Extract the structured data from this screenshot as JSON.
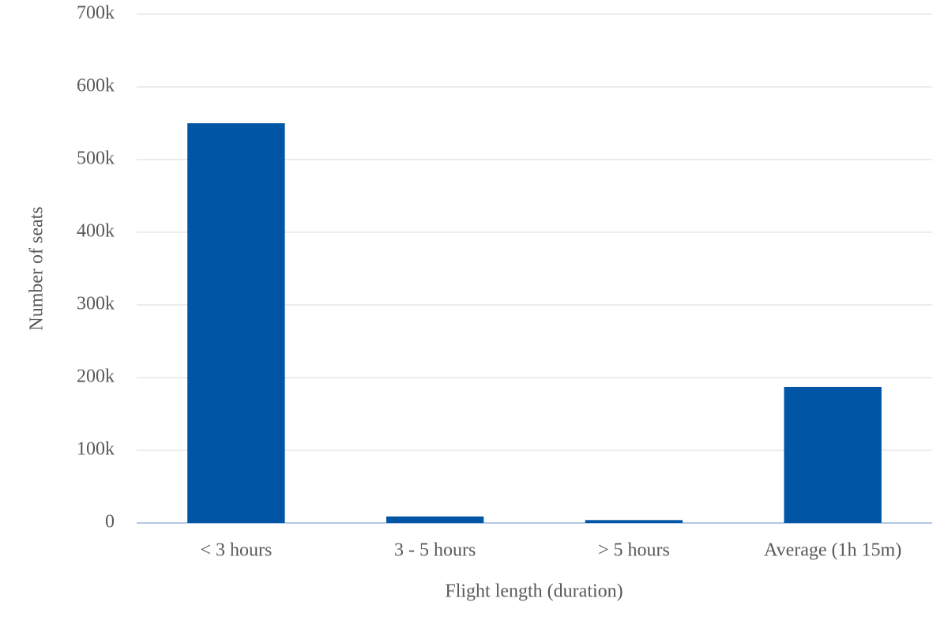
{
  "chart_data": {
    "type": "bar",
    "x_label": "Flight length (duration)",
    "y_label": "Number of seats",
    "categories": [
      "< 3 hours",
      "3 - 5 hours",
      "> 5 hours",
      "Average (1h 15m)"
    ],
    "values": [
      550000,
      9000,
      4000,
      187000
    ],
    "color": "#0055a5",
    "ylim": [
      0,
      700000
    ],
    "yticks": [
      0,
      {
        "value": 100000,
        "label": "100k"
      },
      {
        "value": 200000,
        "label": "200k"
      },
      {
        "value": 300000,
        "label": "300k"
      },
      {
        "value": 400000,
        "label": "400k"
      },
      {
        "value": 500000,
        "label": "500k"
      },
      {
        "value": 600000,
        "label": "600k"
      },
      {
        "value": 700000,
        "label": "700k"
      }
    ],
    "grid": true
  }
}
